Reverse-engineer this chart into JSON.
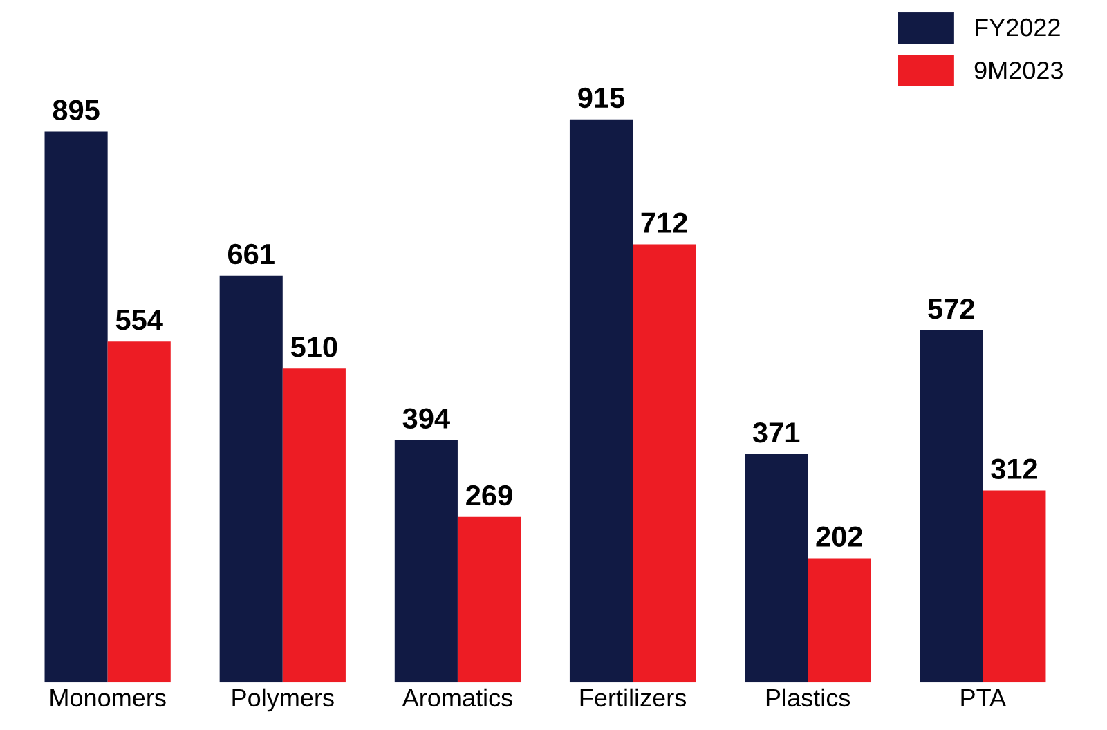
{
  "chart_data": {
    "type": "bar",
    "categories": [
      "Monomers",
      "Polymers",
      "Aromatics",
      "Fertilizers",
      "Plastics",
      "PTA"
    ],
    "series": [
      {
        "name": "FY2022",
        "color": "#111a44",
        "values": [
          895,
          661,
          394,
          915,
          371,
          572
        ]
      },
      {
        "name": "9M2023",
        "color": "#ed1c24",
        "values": [
          554,
          510,
          269,
          712,
          202,
          312
        ]
      }
    ],
    "data_labels": true,
    "legend": "top right",
    "grid": false,
    "tick_labels": "x"
  }
}
